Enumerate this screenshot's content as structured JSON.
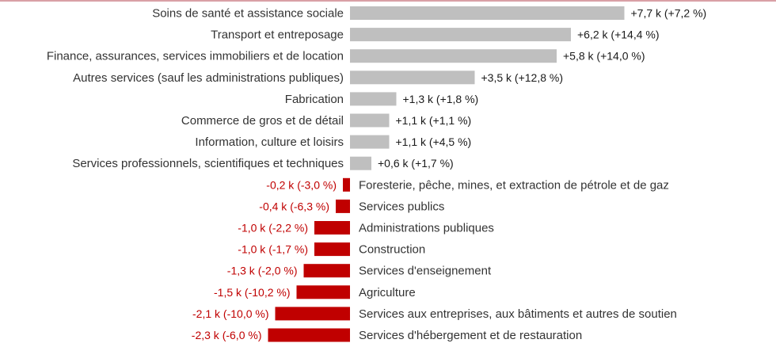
{
  "chart_data": {
    "type": "bar",
    "orientation": "horizontal",
    "unit": "k",
    "categories": [
      "Soins de santé et assistance sociale",
      "Transport et entreposage",
      "Finance, assurances, services immobiliers et de location",
      "Autres services (sauf les administrations publiques)",
      "Fabrication",
      "Commerce de gros et de détail",
      "Information, culture et loisirs",
      "Services professionnels, scientifiques et techniques",
      "Foresterie, pêche, mines, et extraction de pétrole et de gaz",
      "Services publics",
      "Administrations publiques",
      "Construction",
      "Services d'enseignement",
      "Agriculture",
      "Services aux entreprises, aux bâtiments et autres de soutien",
      "Services d'hébergement et de restauration"
    ],
    "values": [
      7.7,
      6.2,
      5.8,
      3.5,
      1.3,
      1.1,
      1.1,
      0.6,
      -0.2,
      -0.4,
      -1.0,
      -1.0,
      -1.3,
      -1.5,
      -2.1,
      -2.3
    ],
    "percent_change": [
      7.2,
      14.4,
      14.0,
      12.8,
      1.8,
      1.1,
      4.5,
      1.7,
      -3.0,
      -6.3,
      -2.2,
      -1.7,
      -2.0,
      -10.2,
      -10.0,
      -6.0
    ],
    "data_labels": [
      "+7,7 k (+7,2 %)",
      "+6,2 k (+14,4 %)",
      "+5,8 k (+14,0 %)",
      "+3,5 k (+12,8 %)",
      "+1,3 k (+1,8 %)",
      "+1,1 k (+1,1 %)",
      "+1,1 k (+4,5 %)",
      "+0,6 k (+1,7 %)",
      "-0,2 k (-3,0 %)",
      "-0,4 k (-6,3 %)",
      "-1,0 k (-2,2 %)",
      "-1,0 k (-1,7 %)",
      "-1,3 k (-2,0 %)",
      "-1,5 k (-10,2 %)",
      "-2,1 k (-10,0 %)",
      "-2,3 k (-6,0 %)"
    ],
    "xlim": [
      -2.3,
      7.7
    ],
    "grid": false,
    "legend": "none"
  },
  "colors": {
    "positive_bar": "#bfbfbf",
    "negative_bar": "#c00000",
    "positive_text": "#1a1a1a",
    "negative_text": "#c00000",
    "category_text": "#333333",
    "top_rule": "#d9a0a6"
  }
}
